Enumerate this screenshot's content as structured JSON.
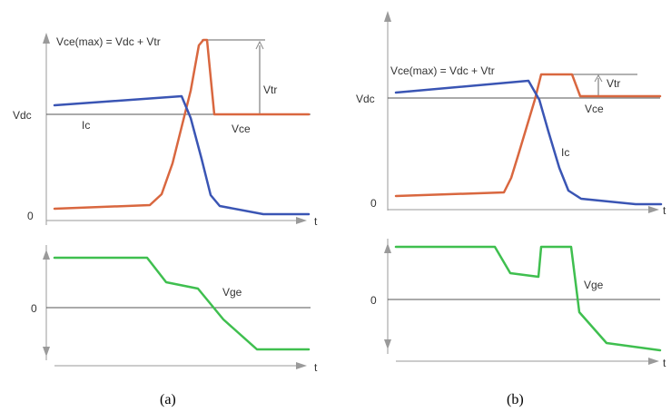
{
  "colors": {
    "ic": "#3a55b4",
    "vce": "#d9673f",
    "vge": "#3fbf4f"
  },
  "panel_a": {
    "vce_max_label": "Vce(max) = Vdc + Vtr",
    "vtr_label": "Vtr",
    "vdc_label": "Vdc",
    "ic_label": "Ic",
    "vce_label": "Vce",
    "zero_top_label": "0",
    "t_top_label": "t",
    "vge_label": "Vge",
    "zero_bottom_label": "0",
    "t_bottom_label": "t",
    "caption": "(a)"
  },
  "panel_b": {
    "vce_max_label": "Vce(max) = Vdc + Vtr",
    "vtr_label": "Vtr",
    "vdc_label": "Vdc",
    "ic_label": "Ic",
    "vce_label": "Vce",
    "zero_top_label": "0",
    "t_top_label": "t",
    "vge_label": "Vge",
    "zero_bottom_label": "0",
    "t_bottom_label": "t",
    "caption": "(b)"
  }
}
